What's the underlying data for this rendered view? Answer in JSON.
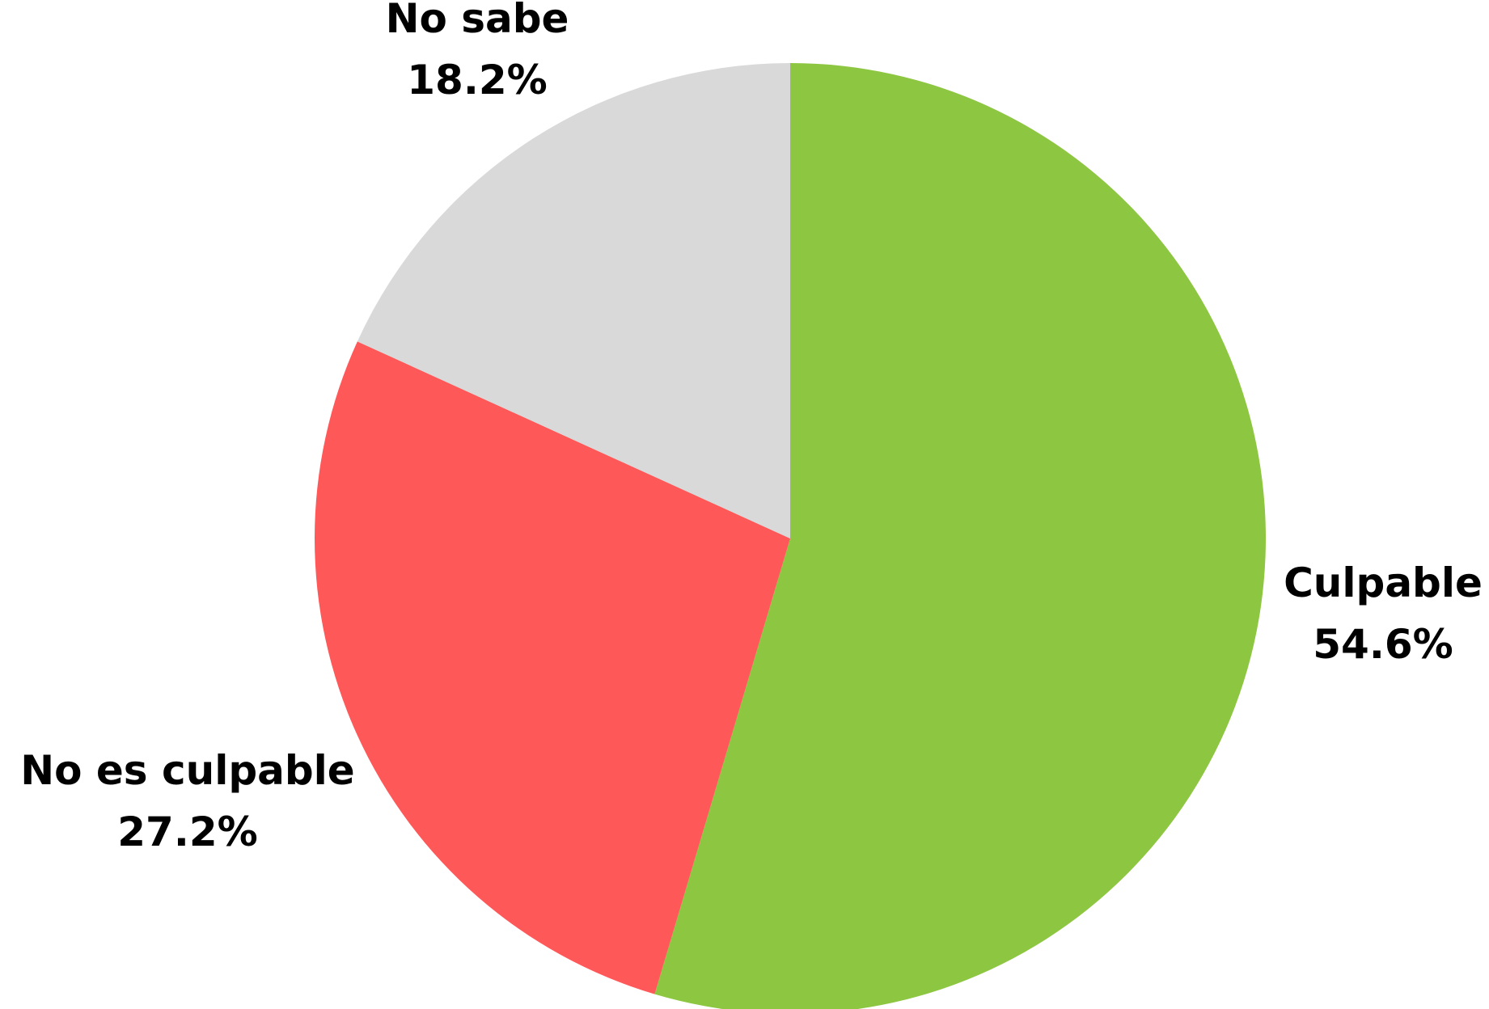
{
  "chart_data": {
    "type": "pie",
    "title": "",
    "start_angle_deg": 0,
    "direction": "clockwise",
    "slices": [
      {
        "label": "Culpable",
        "value": 54.6,
        "display": "54.6%",
        "color": "#8dc641"
      },
      {
        "label": "No es culpable",
        "value": 27.2,
        "display": "27.2%",
        "color": "#ff5859"
      },
      {
        "label": "No sabe",
        "value": 18.2,
        "display": "18.2%",
        "color": "#d9d9d9"
      }
    ],
    "legend": "none",
    "labels_position": "outside"
  }
}
